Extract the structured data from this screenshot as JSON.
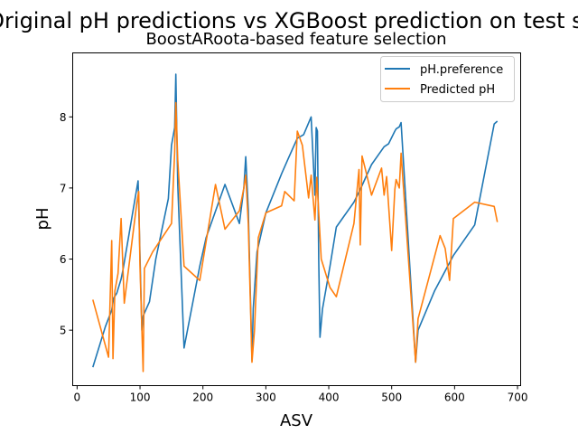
{
  "chart_data": {
    "type": "line",
    "title": "Original pH predictions vs XGBoost prediction on test set",
    "subtitle": "BoostARoota-based feature selection",
    "xlabel": "ASV",
    "ylabel": "pH",
    "xlim": [
      -7,
      705
    ],
    "ylim": [
      4.22,
      8.9
    ],
    "xticks": [
      0,
      100,
      200,
      300,
      400,
      500,
      600,
      700
    ],
    "yticks": [
      5,
      6,
      7,
      8
    ],
    "grid": false,
    "legend_position": "top-right",
    "series": [
      {
        "name": "pH.preference",
        "color": "#1f77b4",
        "x": [
          25,
          45,
          55,
          58,
          63,
          70,
          73,
          97,
          103,
          105,
          115,
          125,
          145,
          150,
          155,
          157,
          160,
          170,
          195,
          205,
          235,
          258,
          265,
          268,
          272,
          278,
          280,
          286,
          300,
          325,
          335,
          350,
          360,
          372,
          378,
          380,
          382,
          384,
          386,
          390,
          402,
          412,
          440,
          450,
          468,
          488,
          495,
          505,
          507,
          512,
          515,
          538,
          542,
          568,
          598,
          632,
          663,
          668
        ],
        "y": [
          4.48,
          5.05,
          5.28,
          5.45,
          5.52,
          5.72,
          5.85,
          7.1,
          5.0,
          5.2,
          5.4,
          6.0,
          6.85,
          7.6,
          7.85,
          8.6,
          7.05,
          4.75,
          5.9,
          6.3,
          7.05,
          6.5,
          7.0,
          7.44,
          6.7,
          4.58,
          5.3,
          6.1,
          6.65,
          7.2,
          7.4,
          7.7,
          7.75,
          8.0,
          6.9,
          7.85,
          7.8,
          6.0,
          4.9,
          5.3,
          5.9,
          6.45,
          6.8,
          6.98,
          7.33,
          7.58,
          7.62,
          7.8,
          7.83,
          7.86,
          7.92,
          4.55,
          5.0,
          5.55,
          6.05,
          6.48,
          7.9,
          7.94
        ]
      },
      {
        "name": "Predicted pH",
        "color": "#ff7f0e",
        "x": [
          25,
          50,
          55,
          57,
          60,
          65,
          70,
          75,
          95,
          98,
          100,
          105,
          107,
          120,
          150,
          155,
          157,
          160,
          170,
          195,
          220,
          235,
          258,
          265,
          268,
          272,
          278,
          282,
          288,
          300,
          325,
          330,
          345,
          350,
          358,
          368,
          372,
          378,
          381,
          388,
          402,
          412,
          440,
          448,
          450,
          453,
          460,
          468,
          484,
          488,
          492,
          500,
          505,
          507,
          512,
          515,
          538,
          542,
          577,
          585,
          592,
          598,
          632,
          663,
          668
        ],
        "y": [
          5.43,
          4.62,
          6.26,
          4.6,
          5.55,
          5.8,
          6.57,
          5.38,
          6.8,
          6.95,
          5.9,
          4.42,
          5.87,
          6.1,
          6.5,
          7.5,
          8.2,
          7.4,
          5.9,
          5.7,
          7.05,
          6.42,
          6.68,
          7.0,
          7.18,
          6.5,
          4.55,
          5.0,
          6.3,
          6.65,
          6.75,
          6.95,
          6.82,
          7.8,
          7.6,
          6.86,
          7.18,
          6.55,
          7.15,
          6.0,
          5.6,
          5.47,
          6.5,
          7.26,
          6.2,
          7.45,
          7.2,
          6.9,
          7.28,
          6.9,
          7.16,
          6.12,
          6.98,
          7.12,
          7.0,
          7.49,
          4.55,
          5.16,
          6.33,
          6.15,
          5.7,
          6.57,
          6.8,
          6.74,
          6.52
        ]
      }
    ]
  }
}
